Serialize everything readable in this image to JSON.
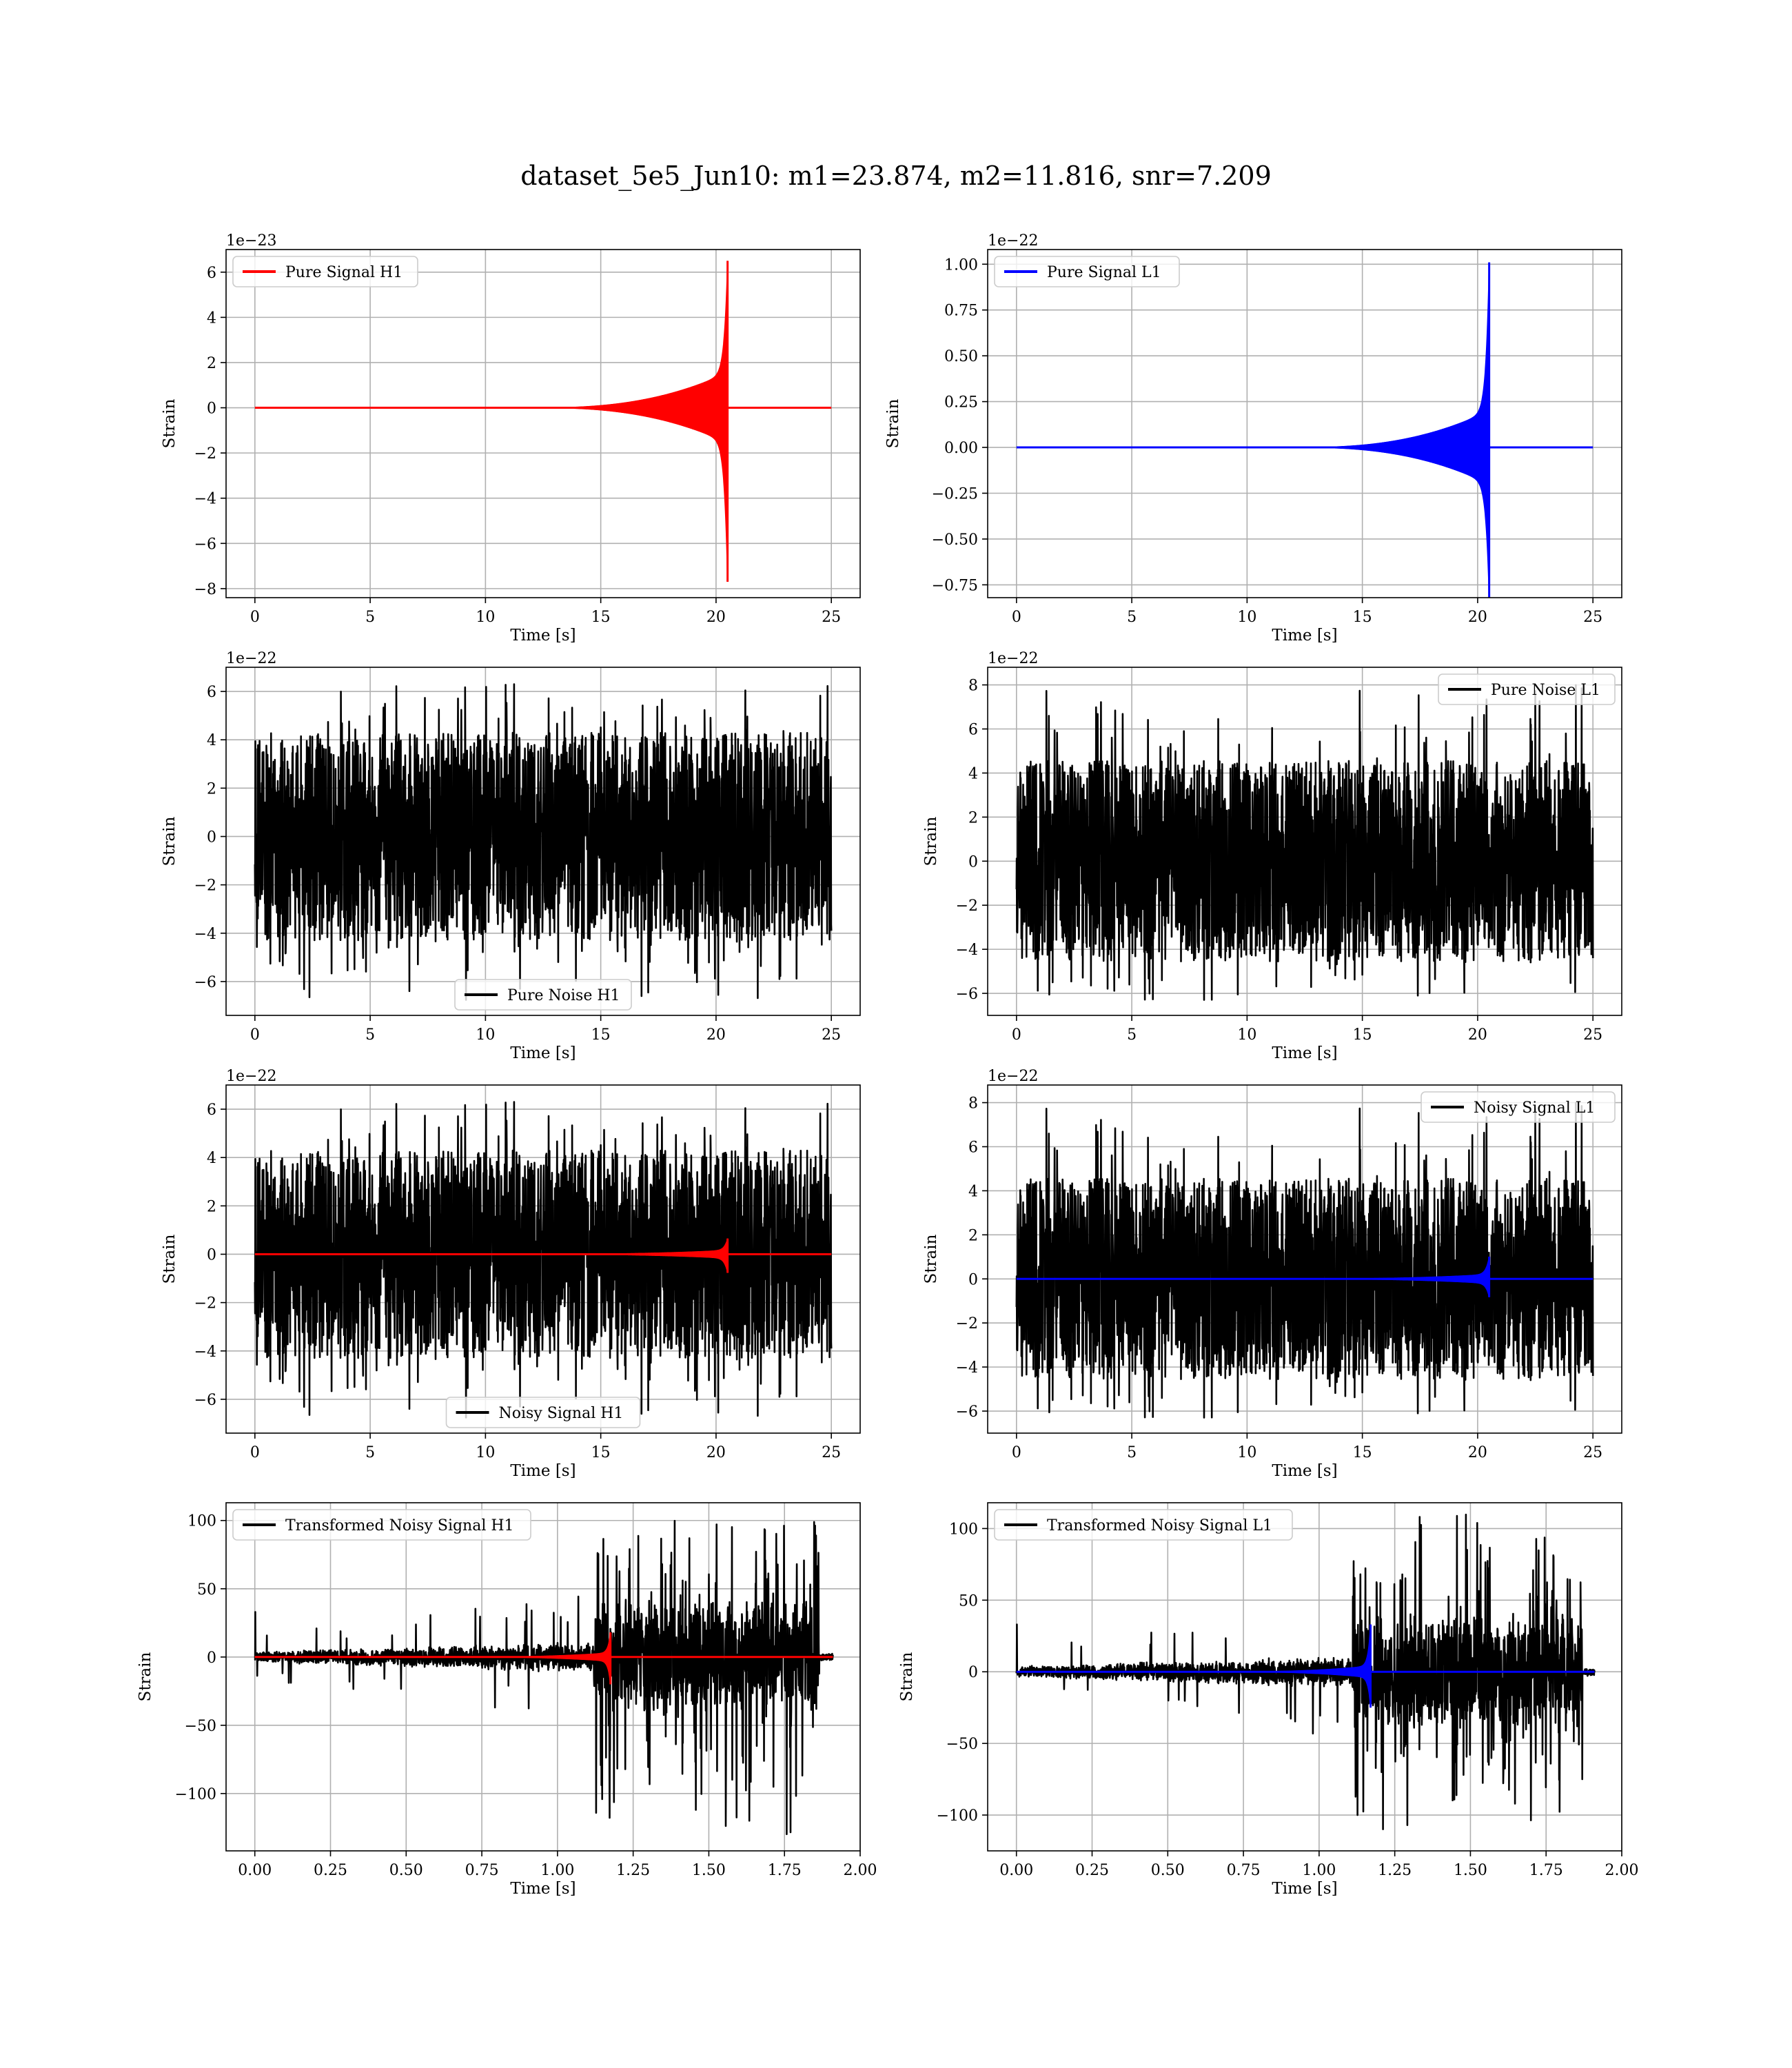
{
  "figure": {
    "title": "dataset_5e5_Jun10: m1=23.874, m2=11.816, snr=7.209",
    "colors": {
      "h1_signal": "#ff0000",
      "l1_signal": "#0000ff",
      "noise": "#000000",
      "grid": "#b0b0b0"
    }
  },
  "chart_data": [
    {
      "id": "pure-signal-h1",
      "type": "line",
      "xlabel": "Time [s]",
      "ylabel": "Strain",
      "y_offset_text": "1e−23",
      "xlim": [
        -1.25,
        26.25
      ],
      "ylim": [
        -8.4,
        7.0
      ],
      "xticks": [
        0,
        5,
        10,
        15,
        20,
        25
      ],
      "xtick_labels": [
        "0",
        "5",
        "10",
        "15",
        "20",
        "25"
      ],
      "yticks": [
        -8,
        -6,
        -4,
        -2,
        0,
        2,
        4,
        6
      ],
      "ytick_labels": [
        "−8",
        "−6",
        "−4",
        "−2",
        "0",
        "2",
        "4",
        "6"
      ],
      "legend_loc": "upper-left",
      "series": [
        {
          "name": "Pure Signal H1",
          "color": "#ff0000",
          "kind": "chirp",
          "t_start": 0,
          "t_end": 25,
          "t_merge": 20.5,
          "peak_pos": 6.5,
          "peak_neg": -7.7,
          "plateau": 1.55
        }
      ]
    },
    {
      "id": "pure-signal-l1",
      "type": "line",
      "xlabel": "Time [s]",
      "ylabel": "Strain",
      "y_offset_text": "1e−22",
      "xlim": [
        -1.25,
        26.25
      ],
      "ylim": [
        -0.82,
        1.08
      ],
      "xticks": [
        0,
        5,
        10,
        15,
        20,
        25
      ],
      "xtick_labels": [
        "0",
        "5",
        "10",
        "15",
        "20",
        "25"
      ],
      "yticks": [
        -0.75,
        -0.5,
        -0.25,
        0.0,
        0.25,
        0.5,
        0.75,
        1.0
      ],
      "ytick_labels": [
        "−0.75",
        "−0.50",
        "−0.25",
        "0.00",
        "0.25",
        "0.50",
        "0.75",
        "1.00"
      ],
      "legend_loc": "upper-left",
      "series": [
        {
          "name": "Pure Signal L1",
          "color": "#0000ff",
          "kind": "chirp",
          "t_start": 0,
          "t_end": 25,
          "t_merge": 20.5,
          "peak_pos": 1.01,
          "peak_neg": -0.83,
          "plateau": 0.2
        }
      ]
    },
    {
      "id": "pure-noise-h1",
      "type": "line",
      "xlabel": "Time [s]",
      "ylabel": "Strain",
      "y_offset_text": "1e−22",
      "xlim": [
        -1.25,
        26.25
      ],
      "ylim": [
        -7.4,
        7.0
      ],
      "xticks": [
        0,
        5,
        10,
        15,
        20,
        25
      ],
      "xtick_labels": [
        "0",
        "5",
        "10",
        "15",
        "20",
        "25"
      ],
      "yticks": [
        -6,
        -4,
        -2,
        0,
        2,
        4,
        6
      ],
      "ytick_labels": [
        "−6",
        "−4",
        "−2",
        "0",
        "2",
        "4",
        "6"
      ],
      "legend_loc": "lower-center",
      "series": [
        {
          "name": "Pure Noise H1",
          "color": "#000000",
          "kind": "noise",
          "t_start": 0,
          "t_end": 25,
          "band": 3.3,
          "spike_max": 6.3,
          "spike_min": -6.8,
          "seed": 11
        }
      ]
    },
    {
      "id": "pure-noise-l1",
      "type": "line",
      "xlabel": "Time [s]",
      "ylabel": "Strain",
      "y_offset_text": "1e−22",
      "xlim": [
        -1.25,
        26.25
      ],
      "ylim": [
        -7.0,
        8.8
      ],
      "xticks": [
        0,
        5,
        10,
        15,
        20,
        25
      ],
      "xtick_labels": [
        "0",
        "5",
        "10",
        "15",
        "20",
        "25"
      ],
      "yticks": [
        -6,
        -4,
        -2,
        0,
        2,
        4,
        6,
        8
      ],
      "ytick_labels": [
        "−6",
        "−4",
        "−2",
        "0",
        "2",
        "4",
        "6",
        "8"
      ],
      "legend_loc": "upper-right",
      "series": [
        {
          "name": "Pure Noise L1",
          "color": "#000000",
          "kind": "noise",
          "t_start": 0,
          "t_end": 25,
          "band": 3.5,
          "spike_max": 8.1,
          "spike_min": -6.3,
          "seed": 23
        }
      ]
    },
    {
      "id": "noisy-signal-h1",
      "type": "line",
      "xlabel": "Time [s]",
      "ylabel": "Strain",
      "y_offset_text": "1e−22",
      "xlim": [
        -1.25,
        26.25
      ],
      "ylim": [
        -7.4,
        7.0
      ],
      "xticks": [
        0,
        5,
        10,
        15,
        20,
        25
      ],
      "xtick_labels": [
        "0",
        "5",
        "10",
        "15",
        "20",
        "25"
      ],
      "yticks": [
        -6,
        -4,
        -2,
        0,
        2,
        4,
        6
      ],
      "ytick_labels": [
        "−6",
        "−4",
        "−2",
        "0",
        "2",
        "4",
        "6"
      ],
      "legend_loc": "lower-center",
      "series": [
        {
          "name": "Noisy Signal H1",
          "color": "#000000",
          "kind": "noise",
          "t_start": 0,
          "t_end": 25,
          "band": 3.3,
          "spike_max": 6.3,
          "spike_min": -6.8,
          "seed": 11
        },
        {
          "color": "#ff0000",
          "kind": "chirp",
          "t_start": 0,
          "t_end": 25,
          "t_merge": 20.5,
          "peak_pos": 0.65,
          "peak_neg": -0.77,
          "plateau": 0.16
        }
      ]
    },
    {
      "id": "noisy-signal-l1",
      "type": "line",
      "xlabel": "Time [s]",
      "ylabel": "Strain",
      "y_offset_text": "1e−22",
      "xlim": [
        -1.25,
        26.25
      ],
      "ylim": [
        -7.0,
        8.8
      ],
      "xticks": [
        0,
        5,
        10,
        15,
        20,
        25
      ],
      "xtick_labels": [
        "0",
        "5",
        "10",
        "15",
        "20",
        "25"
      ],
      "yticks": [
        -6,
        -4,
        -2,
        0,
        2,
        4,
        6,
        8
      ],
      "ytick_labels": [
        "−6",
        "−4",
        "−2",
        "0",
        "2",
        "4",
        "6",
        "8"
      ],
      "legend_loc": "upper-right",
      "series": [
        {
          "name": "Noisy Signal L1",
          "color": "#000000",
          "kind": "noise",
          "t_start": 0,
          "t_end": 25,
          "band": 3.5,
          "spike_max": 8.1,
          "spike_min": -6.3,
          "seed": 23
        },
        {
          "color": "#0000ff",
          "kind": "chirp",
          "t_start": 0,
          "t_end": 25,
          "t_merge": 20.5,
          "peak_pos": 1.01,
          "peak_neg": -0.83,
          "plateau": 0.2
        }
      ]
    },
    {
      "id": "transformed-noisy-signal-h1",
      "type": "line",
      "xlabel": "Time [s]",
      "ylabel": "Strain",
      "y_offset_text": "",
      "xlim": [
        -0.095,
        2.0
      ],
      "ylim": [
        -142,
        113
      ],
      "xticks": [
        0.0,
        0.25,
        0.5,
        0.75,
        1.0,
        1.25,
        1.5,
        1.75,
        2.0
      ],
      "xtick_labels": [
        "0.00",
        "0.25",
        "0.50",
        "0.75",
        "1.00",
        "1.25",
        "1.50",
        "1.75",
        "2.00"
      ],
      "yticks": [
        -100,
        -50,
        0,
        50,
        100
      ],
      "ytick_labels": [
        "−100",
        "−50",
        "0",
        "50",
        "100"
      ],
      "legend_loc": "upper-left",
      "series": [
        {
          "name": "Transformed Noisy Signal H1",
          "color": "#000000",
          "kind": "transformed",
          "t_start": 0,
          "t_end": 1.91,
          "t_jump": 1.12,
          "t_drop": 1.865,
          "low_band": 4,
          "high_band": 45,
          "spike_max": 100,
          "spike_min": -130,
          "seed": 37
        },
        {
          "color": "#ff0000",
          "kind": "chirp",
          "t_start": 0,
          "t_end": 1.91,
          "t_merge": 1.175,
          "peak_pos": 18,
          "peak_neg": -20,
          "plateau": 3
        }
      ]
    },
    {
      "id": "transformed-noisy-signal-l1",
      "type": "line",
      "xlabel": "Time [s]",
      "ylabel": "Strain",
      "y_offset_text": "",
      "xlim": [
        -0.095,
        2.0
      ],
      "ylim": [
        -125,
        118
      ],
      "xticks": [
        0.0,
        0.25,
        0.5,
        0.75,
        1.0,
        1.25,
        1.5,
        1.75,
        2.0
      ],
      "xtick_labels": [
        "0.00",
        "0.25",
        "0.50",
        "0.75",
        "1.00",
        "1.25",
        "1.50",
        "1.75",
        "2.00"
      ],
      "yticks": [
        -100,
        -50,
        0,
        50,
        100
      ],
      "ytick_labels": [
        "−100",
        "−50",
        "0",
        "50",
        "100"
      ],
      "legend_loc": "upper-left",
      "series": [
        {
          "name": "Transformed Noisy Signal L1",
          "color": "#000000",
          "kind": "transformed",
          "t_start": 0,
          "t_end": 1.91,
          "t_jump": 1.11,
          "t_drop": 1.87,
          "low_band": 4,
          "high_band": 45,
          "spike_max": 110,
          "spike_min": -110,
          "seed": 53
        },
        {
          "color": "#0000ff",
          "kind": "chirp",
          "t_start": 0,
          "t_end": 1.91,
          "t_merge": 1.17,
          "peak_pos": 33,
          "peak_neg": -25,
          "plateau": 4
        }
      ]
    }
  ]
}
